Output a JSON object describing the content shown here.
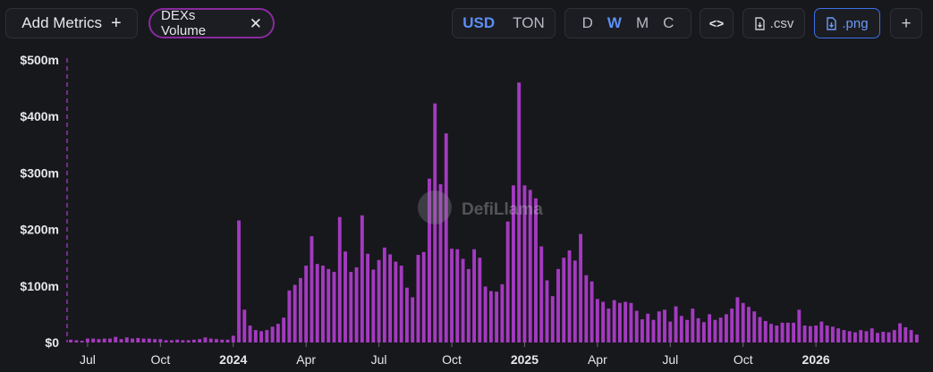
{
  "toolbar": {
    "add_metrics_label": "Add Metrics",
    "add_metrics_icon": "plus-icon",
    "metric_pill_label": "DEXs Volume",
    "metric_pill_icon": "close-icon",
    "currency_options": [
      "USD",
      "TON"
    ],
    "currency_selected": "USD",
    "interval_options": [
      "D",
      "W",
      "M",
      "C"
    ],
    "interval_selected": "W",
    "embed_icon": "code-icon",
    "csv_label": ".csv",
    "png_label": ".png",
    "download_icon": "file-download-icon",
    "add_chart_icon": "plus-icon",
    "accent_color": "#5c8ff5"
  },
  "watermark": {
    "text": "DefiLlama",
    "logo_icon": "llama-logo-icon"
  },
  "chart_data": {
    "type": "bar",
    "title": "",
    "xlabel": "",
    "ylabel": "",
    "bar_color": "#a43ac0",
    "ylim": [
      0,
      500
    ],
    "y_unit": "m",
    "y_ticks": [
      "$0",
      "$100m",
      "$200m",
      "$300m",
      "$400m",
      "$500m"
    ],
    "x_tick_labels": [
      "Jul",
      "Oct",
      "2024",
      "Apr",
      "Jul",
      "Oct",
      "2025",
      "Apr",
      "Jul",
      "Oct",
      "2026"
    ],
    "x_tick_bold": [
      false,
      false,
      true,
      false,
      false,
      false,
      true,
      false,
      false,
      false,
      true
    ],
    "x_tick_week_index": [
      3,
      16,
      29,
      42,
      55,
      68,
      81,
      94,
      107,
      120,
      133
    ],
    "grid": false,
    "legend": "none",
    "series": [
      {
        "values": [
          5,
          4,
          3,
          7,
          7,
          6,
          7,
          7,
          10,
          6,
          9,
          7,
          8,
          7,
          7,
          6,
          6,
          4,
          4,
          5,
          4,
          4,
          5,
          6,
          9,
          7,
          6,
          5,
          5,
          12,
          216,
          58,
          30,
          22,
          20,
          22,
          28,
          33,
          44,
          92,
          102,
          114,
          136,
          188,
          139,
          136,
          130,
          125,
          222,
          161,
          125,
          133,
          225,
          157,
          129,
          146,
          168,
          156,
          143,
          136,
          97,
          80,
          155,
          160,
          290,
          423,
          280,
          370,
          166,
          165,
          148,
          130,
          165,
          150,
          99,
          91,
          90,
          103,
          214,
          278,
          460,
          278,
          270,
          255,
          170,
          110,
          82,
          130,
          150,
          163,
          145,
          192,
          119,
          108,
          77,
          72,
          60,
          75,
          70,
          72,
          70,
          56,
          41,
          51,
          40,
          55,
          58,
          37,
          64,
          47,
          40,
          60,
          43,
          36,
          50,
          40,
          44,
          50,
          60,
          80,
          70,
          63,
          55,
          45,
          38,
          33,
          30,
          35,
          35,
          35,
          58,
          30,
          29,
          30,
          37,
          30,
          28,
          25,
          22,
          20,
          18,
          22,
          20,
          25,
          17,
          19,
          18,
          22,
          34,
          27,
          22,
          14
        ]
      }
    ]
  }
}
